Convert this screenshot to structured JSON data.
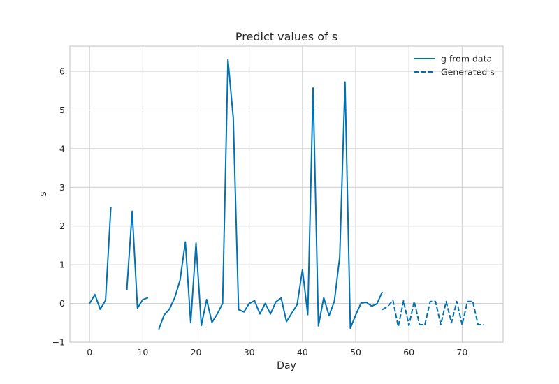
{
  "chart_data": {
    "type": "line",
    "title": "Predict values of s",
    "xlabel": "Day",
    "ylabel": "s",
    "xlim": [
      -3.7,
      77.7
    ],
    "ylim": [
      -1,
      6.65
    ],
    "xticks": [
      0,
      10,
      20,
      30,
      40,
      50,
      60,
      70
    ],
    "yticks": [
      -1,
      0,
      1,
      2,
      3,
      4,
      5,
      6
    ],
    "grid": true,
    "legend_position": "top-right",
    "colors": {
      "line": "#0072b2",
      "grid": "#cccccc",
      "frame": "#cccccc",
      "background": "#ffffff"
    },
    "series": [
      {
        "name": "g from data",
        "style": "solid",
        "x": [
          0,
          1,
          2,
          3,
          4,
          5,
          6,
          7,
          8,
          9,
          10,
          11,
          12,
          13,
          14,
          15,
          16,
          17,
          18,
          19,
          20,
          21,
          22,
          23,
          24,
          25,
          26,
          27,
          28,
          29,
          30,
          31,
          32,
          33,
          34,
          35,
          36,
          37,
          38,
          39,
          40,
          41,
          42,
          43,
          44,
          45,
          46,
          47,
          48,
          49,
          50,
          51,
          52,
          53,
          54,
          55
        ],
        "y": [
          0.0,
          0.23,
          -0.15,
          0.08,
          2.49,
          null,
          null,
          0.35,
          2.38,
          -0.12,
          0.1,
          0.15,
          null,
          -0.67,
          -0.3,
          -0.15,
          0.15,
          0.6,
          1.59,
          -0.5,
          1.56,
          -0.57,
          0.1,
          -0.49,
          -0.27,
          0.0,
          6.3,
          4.8,
          -0.16,
          -0.22,
          0.0,
          0.07,
          -0.27,
          0.0,
          -0.27,
          0.04,
          0.14,
          -0.47,
          -0.25,
          -0.03,
          0.87,
          -0.29,
          5.57,
          -0.58,
          0.15,
          -0.32,
          0.06,
          1.2,
          5.72,
          -0.64,
          -0.3,
          0.01,
          0.03,
          -0.07,
          -0.01,
          0.3
        ]
      },
      {
        "name": "Generated s",
        "style": "dashed",
        "x": [
          55,
          56,
          57,
          58,
          59,
          60,
          61,
          62,
          63,
          64,
          65,
          66,
          67,
          68,
          69,
          70,
          71,
          72,
          73,
          74
        ],
        "y": [
          -0.16,
          -0.08,
          0.08,
          -0.6,
          0.07,
          -0.57,
          0.05,
          -0.55,
          -0.55,
          0.05,
          0.05,
          -0.55,
          0.05,
          -0.5,
          0.05,
          -0.55,
          0.05,
          0.05,
          -0.55,
          -0.55
        ]
      }
    ]
  }
}
